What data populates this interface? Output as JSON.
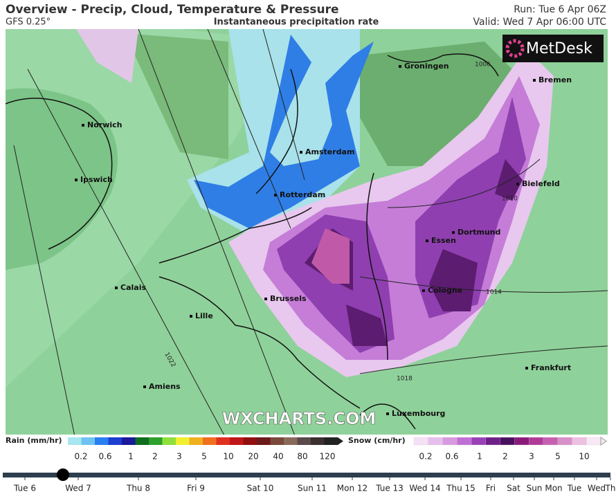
{
  "header": {
    "title": "Overview - Precip, Cloud, Temperature & Pressure",
    "model": "GFS 0.25°",
    "subtitle": "Instantaneous precipitation rate",
    "run": "Run: Tue 6 Apr 06Z",
    "valid": "Valid: Wed 7 Apr 06:00 UTC"
  },
  "map": {
    "logo": "MetDesk",
    "watermark": "WXCHARTS.COM",
    "cities": [
      "Groningen",
      "Bremen",
      "Norwich",
      "Amsterdam",
      "Ipswich",
      "Bielefeld",
      "Rotterdam",
      "Dortmund",
      "Essen",
      "Calais",
      "Cologne",
      "Brussels",
      "Lille",
      "Frankfurt",
      "Amiens",
      "Luxembourg"
    ],
    "isobars": [
      1006,
      1010,
      1014,
      1018,
      1022
    ]
  },
  "legend": {
    "rain": {
      "title": "Rain (mm/hr)",
      "ticks": [
        0.2,
        0.6,
        1,
        2,
        3,
        5,
        10,
        20,
        40,
        80,
        120
      ]
    },
    "snow": {
      "title": "Snow (cm/hr)",
      "ticks": [
        0.2,
        0.6,
        1,
        2,
        3,
        5,
        10
      ]
    }
  },
  "timeline": {
    "labels": [
      "Tue 6",
      "Wed 7",
      "Thu 8",
      "Fri 9",
      "Sat 10",
      "Sun 11",
      "Mon 12",
      "Tue 13",
      "Wed 14",
      "Thu 15",
      "Fri",
      "Sat",
      "Sun",
      "Mon",
      "Tue",
      "Wed",
      "Th"
    ],
    "selected": 1
  }
}
